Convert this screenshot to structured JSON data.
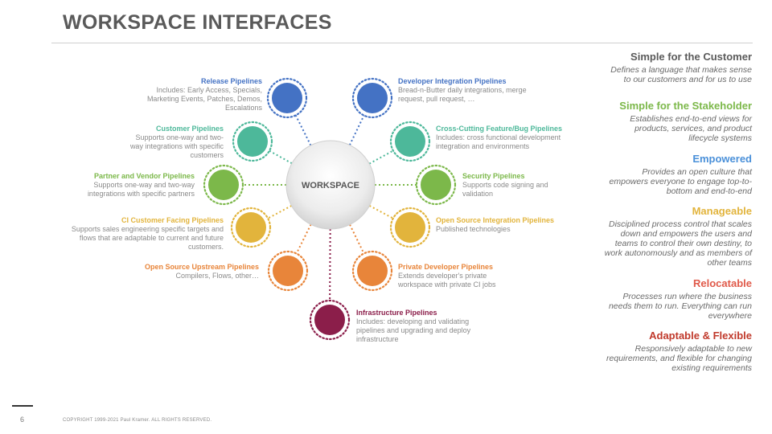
{
  "title": "WORKSPACE INTERFACES",
  "center_label": "WORKSPACE",
  "pipelines": [
    {
      "title": "Release Pipelines",
      "desc": "Includes: Early Access, Specials, Marketing Events, Patches, Demos, Escalations",
      "color": "#4472c4"
    },
    {
      "title": "Developer Integration Pipelines",
      "desc": "Bread-n-Butter daily integrations, merge request, pull request, …",
      "color": "#4472c4"
    },
    {
      "title": "Customer Pipelines",
      "desc": "Supports one-way and two-way integrations with specific customers",
      "color": "#4db89a"
    },
    {
      "title": "Cross-Cutting Feature/Bug Pipelines",
      "desc": "Includes: cross functional development integration and environments",
      "color": "#4db89a"
    },
    {
      "title": "Partner and Vendor Pipelines",
      "desc": "Supports one-way and two-way integrations with specific partners",
      "color": "#7cb84a"
    },
    {
      "title": "Security Pipelines",
      "desc": "Supports code signing and validation",
      "color": "#7cb84a"
    },
    {
      "title": "CI Customer Facing Pipelines",
      "desc": "Supports sales engineering specific targets and flows that are adaptable to current and future customers.",
      "color": "#e2b43c"
    },
    {
      "title": "Open Source Integration Pipelines",
      "desc": "Published technologies",
      "color": "#e2b43c"
    },
    {
      "title": "Open Source Upstream Pipelines",
      "desc": "Compilers, Flows, other…",
      "color": "#e8853a"
    },
    {
      "title": "Private Developer Pipelines",
      "desc": "Extends developer's private workspace with private CI jobs",
      "color": "#e8853a"
    },
    {
      "title": "Infrastructure Pipelines",
      "desc": "Includes: developing and validating pipelines and upgrading and deploy infrastructure",
      "color": "#8b1e4a"
    }
  ],
  "principles": [
    {
      "heading": "Simple for the Customer",
      "text": "Defines a language that makes sense to our customers and for us to use",
      "color": "#5a5a5a"
    },
    {
      "heading": "Simple for the Stakeholder",
      "text": "Establishes end-to-end views for products, services, and product lifecycle  systems",
      "color": "#7cb84a"
    },
    {
      "heading": "Empowered",
      "text": "Provides an open culture that empowers everyone to engage top-to-bottom and end-to-end",
      "color": "#4a90d9"
    },
    {
      "heading": "Manageable",
      "text": "Disciplined process control that scales down and empowers the users and teams to control their own destiny, to work autonomously and as members of other teams",
      "color": "#e2b43c"
    },
    {
      "heading": "Relocatable",
      "text": "Processes run where the business needs them to run. Everything can run everywhere",
      "color": "#e05a4a"
    },
    {
      "heading": "Adaptable & Flexible",
      "text": "Responsively adaptable to new requirements, and flexible for changing  existing requirements",
      "color": "#c0392b"
    }
  ],
  "footer": {
    "page_number": "6",
    "copyright": "COPYRIGHT 1999-2021 Paul Kramer.  ALL RIGHTS RESERVED."
  }
}
